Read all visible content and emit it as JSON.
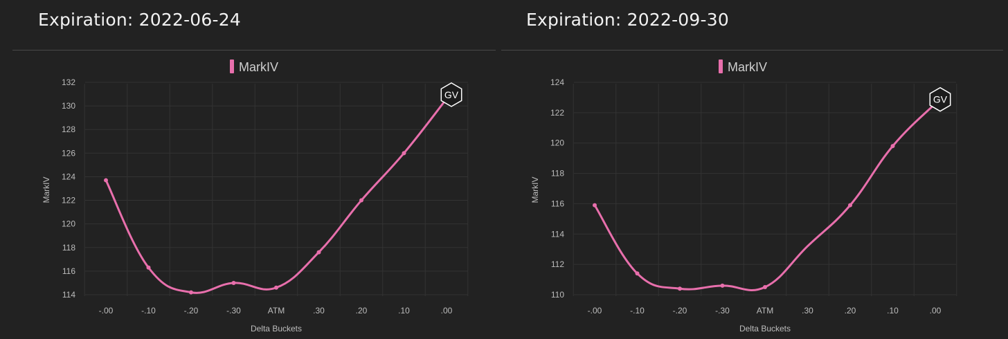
{
  "charts": [
    {
      "title": "Expiration: 2022-06-24",
      "badge": "GV",
      "chart_data": {
        "type": "line",
        "categories": [
          "-.00",
          "-.10",
          "-.20",
          "-.30",
          "ATM",
          ".30",
          ".20",
          ".10",
          ".00"
        ],
        "series": [
          {
            "name": "MarkIV",
            "values": [
              123.7,
              116.3,
              114.2,
              115.0,
              114.6,
              117.6,
              122.0,
              126.0,
              130.6
            ]
          }
        ],
        "xlabel": "Delta Buckets",
        "ylabel": "MarkIV",
        "ylim": [
          114,
          132
        ],
        "yticks": [
          114,
          116,
          118,
          120,
          122,
          124,
          126,
          128,
          130,
          132
        ],
        "grid": true,
        "legend": "top-center",
        "color": "#e86fac"
      }
    },
    {
      "title": "Expiration: 2022-09-30",
      "badge": "GV",
      "chart_data": {
        "type": "line",
        "categories": [
          "-.00",
          "-.10",
          "-.20",
          "-.30",
          "ATM",
          ".30",
          ".20",
          ".10",
          ".00"
        ],
        "series": [
          {
            "name": "MarkIV",
            "values": [
              115.9,
              111.4,
              110.4,
              110.6,
              110.5,
              null,
              115.9,
              119.8,
              122.6
            ]
          }
        ],
        "xlabel": "Delta Buckets",
        "ylabel": "MarkIV",
        "ylim": [
          110,
          124
        ],
        "yticks": [
          110,
          112,
          114,
          116,
          118,
          120,
          122,
          124
        ],
        "grid": true,
        "legend": "top-center",
        "color": "#e86fac"
      }
    }
  ]
}
